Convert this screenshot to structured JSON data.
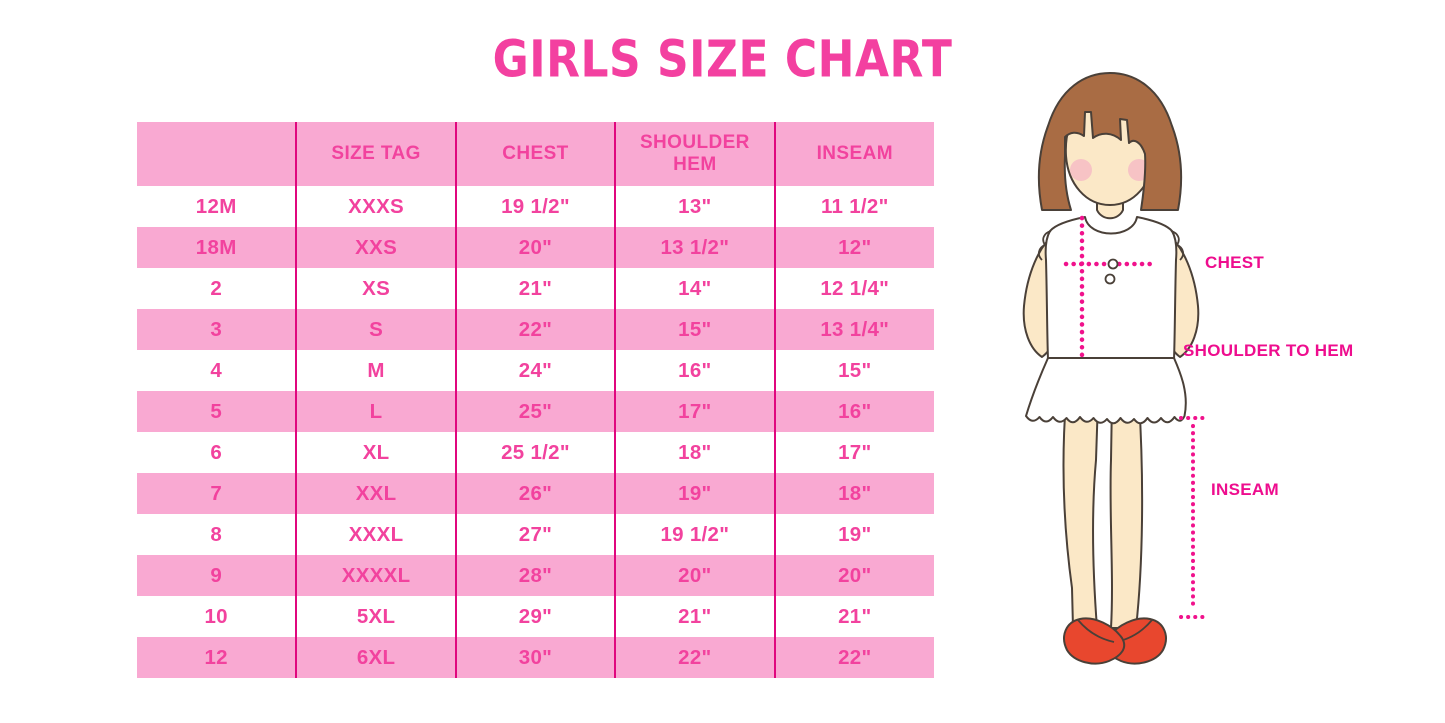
{
  "page": {
    "title": "GIRLS SIZE CHART"
  },
  "chart_data": {
    "type": "table",
    "title": "GIRLS SIZE CHART",
    "columns": [
      "",
      "SIZE TAG",
      "CHEST",
      "SHOULDER HEM",
      "INSEAM"
    ],
    "rows": [
      [
        "12M",
        "XXXS",
        "19 1/2\"",
        "13\"",
        "11 1/2\""
      ],
      [
        "18M",
        "XXS",
        "20\"",
        "13 1/2\"",
        "12\""
      ],
      [
        "2",
        "XS",
        "21\"",
        "14\"",
        "12 1/4\""
      ],
      [
        "3",
        "S",
        "22\"",
        "15\"",
        "13 1/4\""
      ],
      [
        "4",
        "M",
        "24\"",
        "16\"",
        "15\""
      ],
      [
        "5",
        "L",
        "25\"",
        "17\"",
        "16\""
      ],
      [
        "6",
        "XL",
        "25 1/2\"",
        "18\"",
        "17\""
      ],
      [
        "7",
        "XXL",
        "26\"",
        "19\"",
        "18\""
      ],
      [
        "8",
        "XXXL",
        "27\"",
        "19 1/2\"",
        "19\""
      ],
      [
        "9",
        "XXXXL",
        "28\"",
        "20\"",
        "20\""
      ],
      [
        "10",
        "5XL",
        "29\"",
        "21\"",
        "21\""
      ],
      [
        "12",
        "6XL",
        "30\"",
        "22\"",
        "22\""
      ]
    ],
    "layout": {
      "header_background": "pink-band",
      "row_striping": "white-pink-alternating",
      "grid": "vertical-dividers-only"
    }
  },
  "illustration": {
    "figure": "girl-with-measurement-guides",
    "labels": {
      "chest": "CHEST",
      "shoulder_to_hem": "SHOULDER TO HEM",
      "inseam": "INSEAM"
    }
  },
  "colors": {
    "title_pink": "#F340A0",
    "band_pink": "#F9A9D2",
    "divider_pink": "#E0077E",
    "cell_text_pink": "#F2429E",
    "label_pink": "#EE0D8E",
    "dotted_line_pink": "#F0128C",
    "hair_brown": "#A96C44",
    "outline_dark": "#4A4038",
    "skin": "#FBE8C7",
    "blush_pink": "#F5AFC4",
    "shoe_red": "#E8472E",
    "garment_white": "#FFFFFF"
  }
}
